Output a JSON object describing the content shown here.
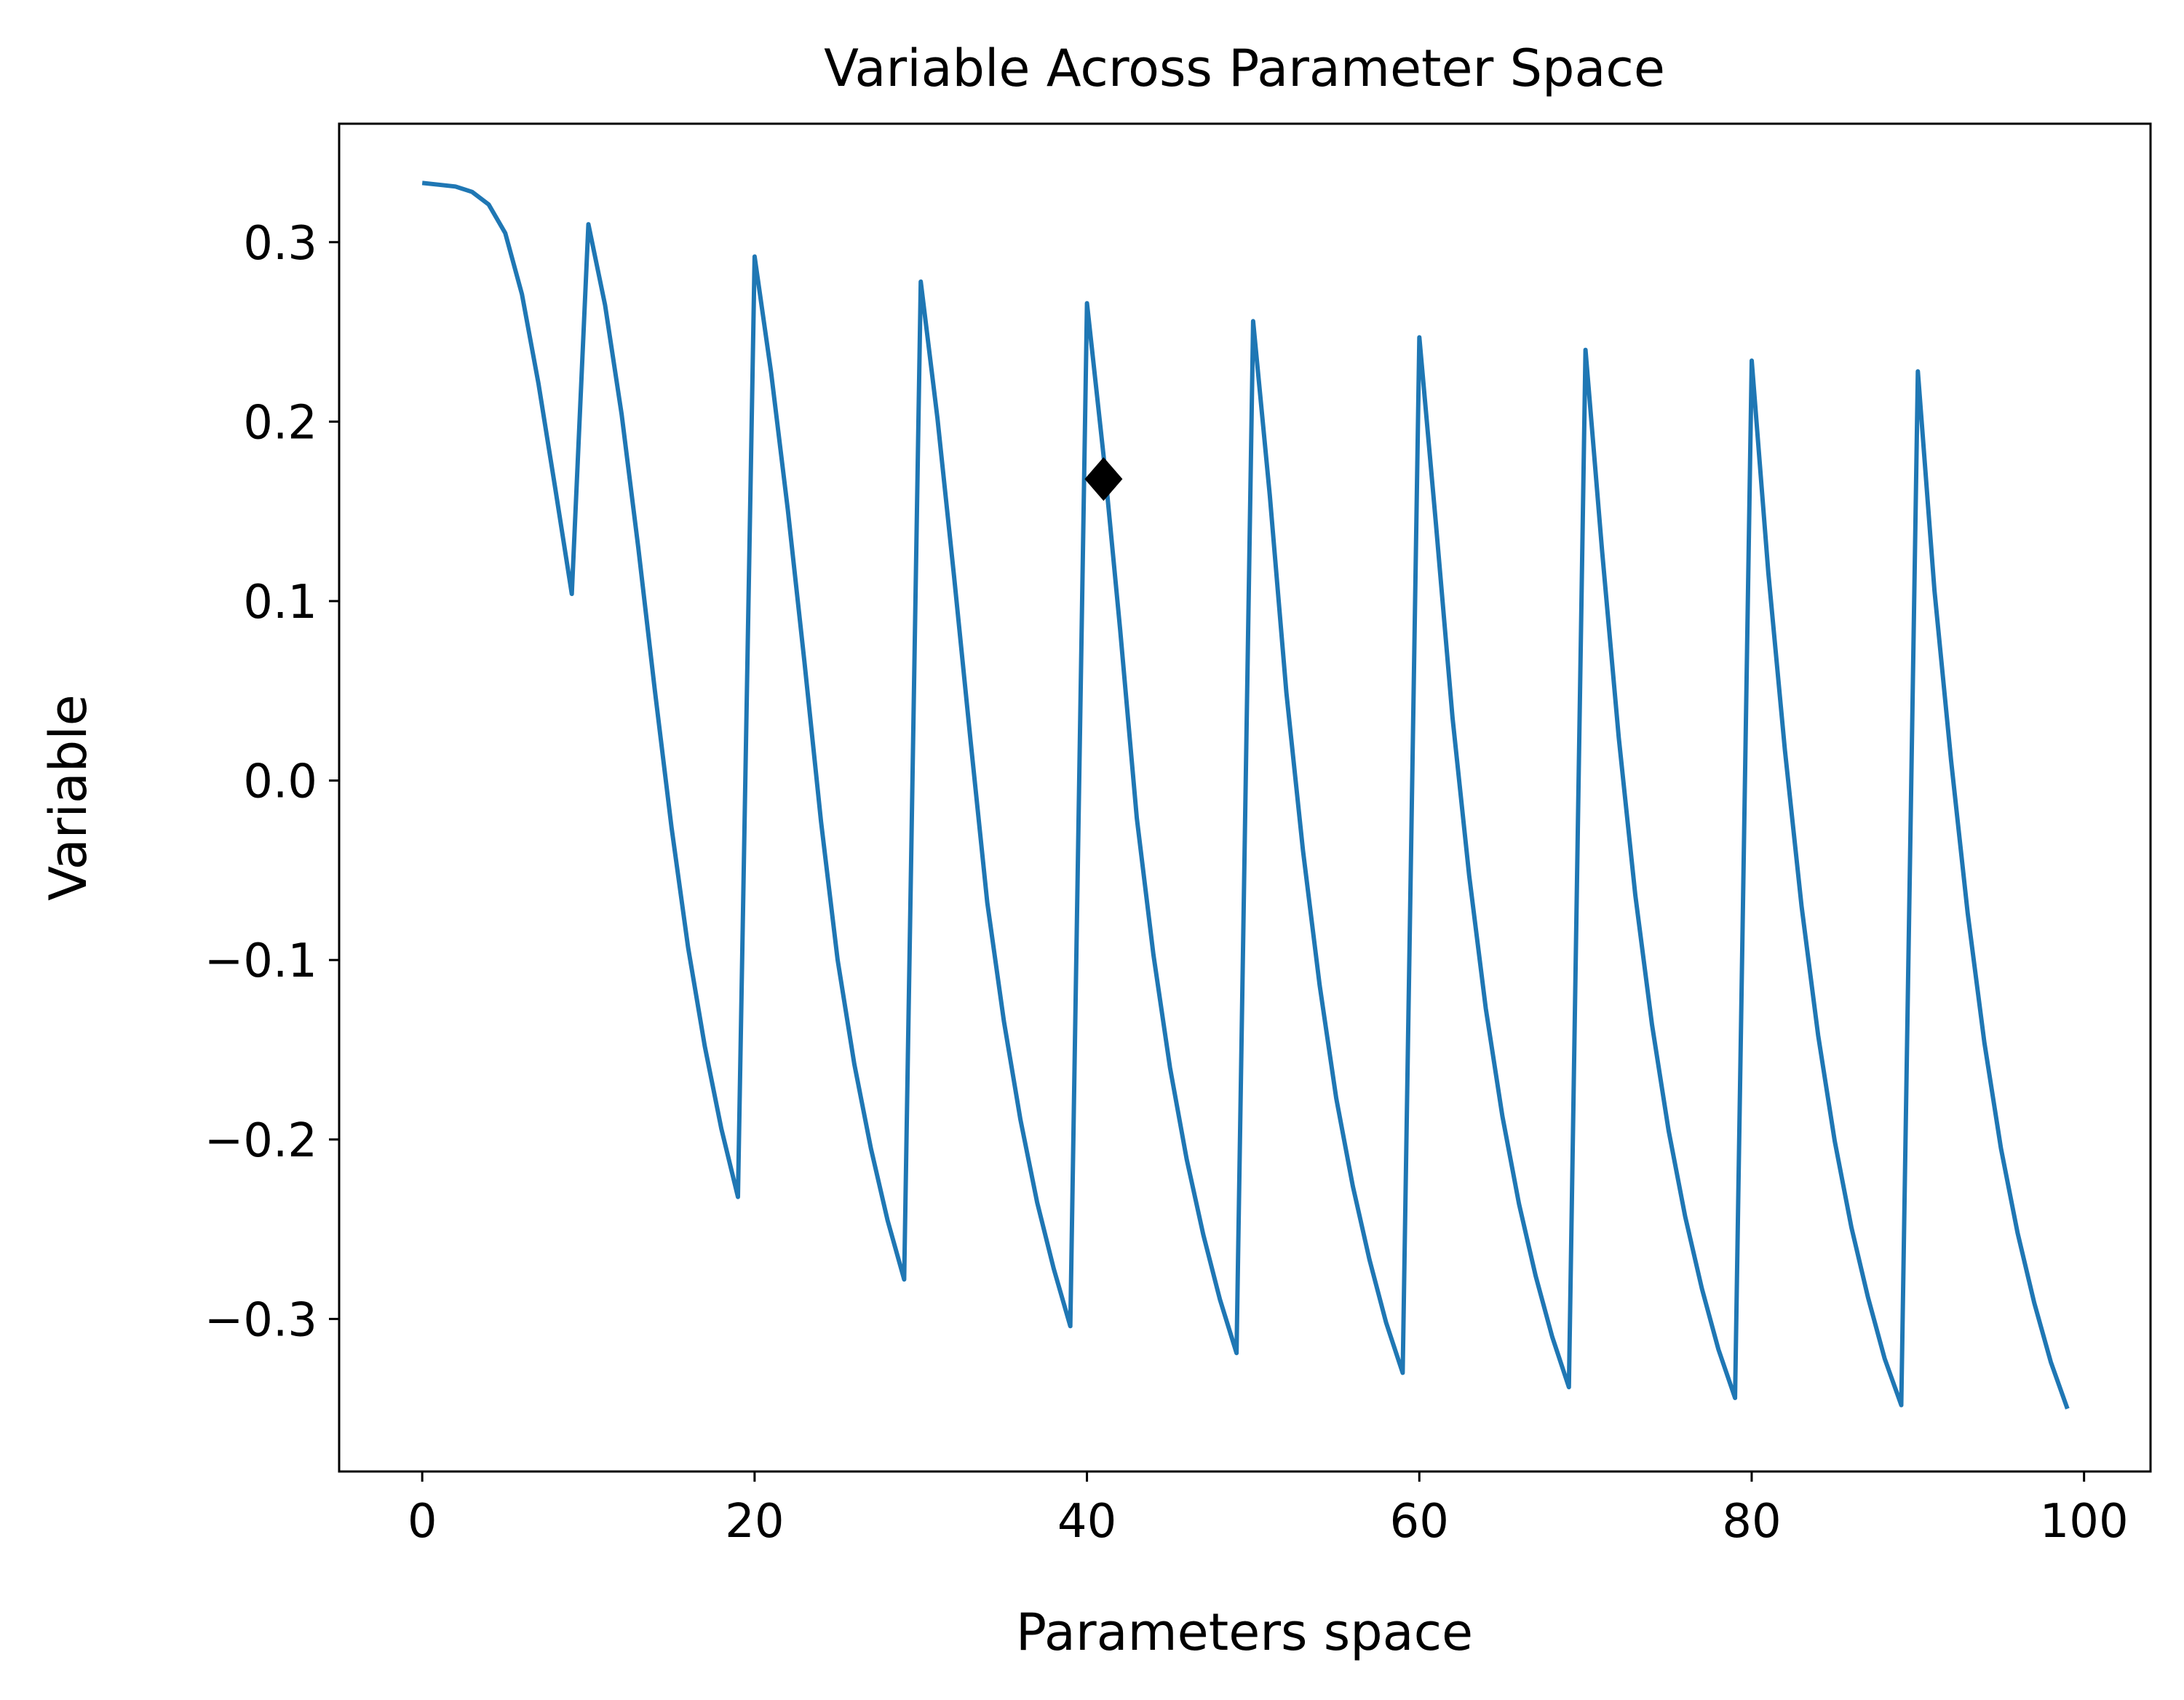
{
  "chart_data": {
    "type": "line",
    "title": "Variable Across Parameter Space",
    "xlabel": "Parameters space",
    "ylabel": "Variable",
    "xlim": [
      -5,
      104
    ],
    "ylim": [
      -0.385,
      0.366
    ],
    "grid": false,
    "xticks": [
      0,
      20,
      40,
      60,
      80,
      100
    ],
    "yticks": [
      0.3,
      0.2,
      0.1,
      0.0,
      -0.1,
      -0.2,
      -0.3
    ],
    "xtick_labels": [
      "0",
      "20",
      "40",
      "60",
      "80",
      "100"
    ],
    "ytick_labels": [
      "0.3",
      "0.2",
      "0.1",
      "0.0",
      "−0.1",
      "−0.2",
      "−0.3"
    ],
    "series": [
      {
        "color": "#1f77b4",
        "x": [
          0,
          1,
          2,
          3,
          4,
          5,
          6,
          7,
          8,
          9,
          10,
          11,
          12,
          13,
          14,
          15,
          16,
          17,
          18,
          19,
          20,
          21,
          22,
          23,
          24,
          25,
          26,
          27,
          28,
          29,
          30,
          31,
          32,
          33,
          34,
          35,
          36,
          37,
          38,
          39,
          40,
          41,
          42,
          43,
          44,
          45,
          46,
          47,
          48,
          49,
          50,
          51,
          52,
          53,
          54,
          55,
          56,
          57,
          58,
          59,
          60,
          61,
          62,
          63,
          64,
          65,
          66,
          67,
          68,
          69,
          70,
          71,
          72,
          73,
          74,
          75,
          76,
          77,
          78,
          79,
          80,
          81,
          82,
          83,
          84,
          85,
          86,
          87,
          88,
          89,
          90,
          91,
          92,
          93,
          94,
          95,
          96,
          97,
          98,
          99
        ],
        "y": [
          0.333,
          0.332,
          0.331,
          0.328,
          0.321,
          0.305,
          0.271,
          0.221,
          0.163,
          0.104,
          0.31,
          0.265,
          0.204,
          0.13,
          0.05,
          -0.026,
          -0.093,
          -0.148,
          -0.194,
          -0.232,
          0.292,
          0.227,
          0.151,
          0.066,
          -0.023,
          -0.1,
          -0.158,
          -0.205,
          -0.245,
          -0.278,
          0.278,
          0.202,
          0.114,
          0.022,
          -0.068,
          -0.134,
          -0.189,
          -0.235,
          -0.272,
          -0.304,
          0.266,
          0.181,
          0.084,
          -0.021,
          -0.097,
          -0.16,
          -0.211,
          -0.253,
          -0.289,
          -0.319,
          0.256,
          0.159,
          0.049,
          -0.039,
          -0.114,
          -0.177,
          -0.226,
          -0.267,
          -0.302,
          -0.33,
          0.247,
          0.143,
          0.035,
          -0.053,
          -0.127,
          -0.187,
          -0.236,
          -0.276,
          -0.31,
          -0.338,
          0.24,
          0.128,
          0.024,
          -0.064,
          -0.136,
          -0.195,
          -0.243,
          -0.283,
          -0.317,
          -0.344,
          0.234,
          0.116,
          0.017,
          -0.07,
          -0.142,
          -0.201,
          -0.249,
          -0.288,
          -0.322,
          -0.348,
          0.228,
          0.106,
          0.011,
          -0.074,
          -0.146,
          -0.205,
          -0.252,
          -0.291,
          -0.324,
          -0.35
        ]
      }
    ],
    "marker": {
      "x": 41,
      "y": 0.168,
      "shape": "diamond",
      "color": "#000000"
    }
  }
}
